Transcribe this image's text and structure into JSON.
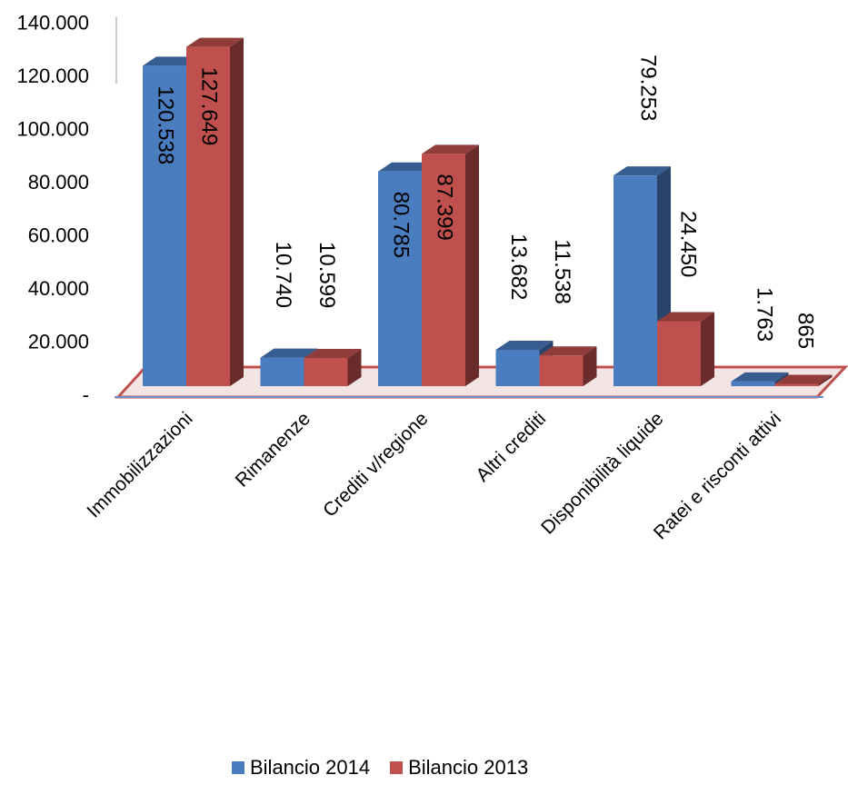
{
  "chart_data": {
    "type": "bar",
    "categories": [
      "Immobilizzazioni",
      "Rimanenze",
      "Crediti v/regione",
      "Altri crediti",
      "Disponibilità liquide",
      "Ratei e risconti attivi"
    ],
    "series": [
      {
        "name": "Bilancio 2014",
        "values": [
          120538,
          10740,
          80785,
          13682,
          79253,
          1763
        ],
        "labels": [
          "120.538",
          "10.740",
          "80.785",
          "13.682",
          "79.253",
          "1.763"
        ],
        "color": "#4a7cc0"
      },
      {
        "name": "Bilancio 2013",
        "values": [
          127649,
          10599,
          87399,
          11538,
          24450,
          865
        ],
        "labels": [
          "127.649",
          "10.599",
          "87.399",
          "11.538",
          "24.450",
          "865"
        ],
        "color": "#c0504d"
      }
    ],
    "yticks": [
      "-",
      "20.000",
      "40.000",
      "60.000",
      "80.000",
      "100.000",
      "120.000",
      "140.000"
    ],
    "ylim": [
      0,
      140000
    ],
    "title": "",
    "xlabel": "",
    "ylabel": "",
    "legend_position": "bottom",
    "three_d": true
  }
}
